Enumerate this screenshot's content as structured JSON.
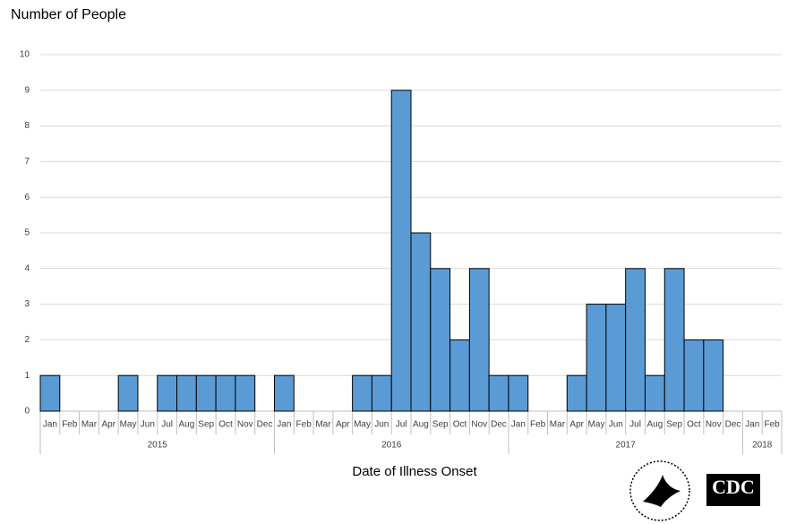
{
  "chart_data": {
    "type": "bar",
    "title": "Number of People",
    "x_label": "Date of Illness Onset",
    "categories": [
      "Jan",
      "Feb",
      "Mar",
      "Apr",
      "May",
      "Jun",
      "Jul",
      "Aug",
      "Sep",
      "Oct",
      "Nov",
      "Dec",
      "Jan",
      "Feb",
      "Mar",
      "Apr",
      "May",
      "Jun",
      "Jul",
      "Aug",
      "Sep",
      "Oct",
      "Nov",
      "Dec",
      "Jan",
      "Feb",
      "Mar",
      "Apr",
      "May",
      "Jun",
      "Jul",
      "Aug",
      "Sep",
      "Oct",
      "Nov",
      "Dec",
      "Jan",
      "Feb"
    ],
    "groups": [
      "2015",
      "2016",
      "2017",
      "2018"
    ],
    "values": [
      1,
      0,
      0,
      0,
      1,
      0,
      1,
      1,
      1,
      1,
      1,
      0,
      1,
      0,
      0,
      0,
      1,
      1,
      9,
      5,
      4,
      2,
      4,
      1,
      1,
      0,
      0,
      1,
      3,
      3,
      4,
      1,
      4,
      2,
      2,
      0,
      0,
      0
    ],
    "color": "#5b9bd5",
    "ylim": [
      0,
      10
    ],
    "yticks": [
      0,
      1,
      2,
      3,
      4,
      5,
      6,
      7,
      8,
      9,
      10
    ],
    "grid": true
  },
  "logos": {
    "cdc": "CDC"
  }
}
